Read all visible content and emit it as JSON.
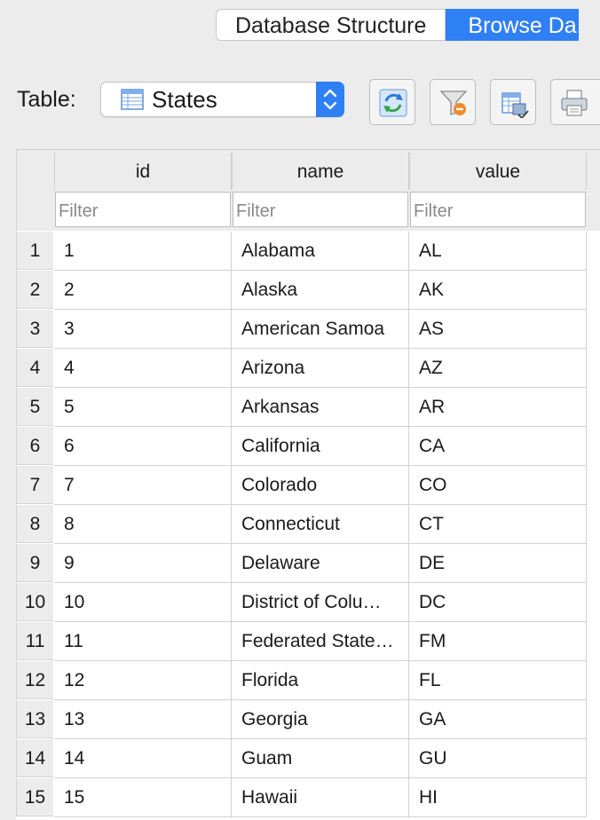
{
  "tabs": [
    {
      "label": "Database Structure",
      "active": false
    },
    {
      "label": "Browse Da",
      "active": true
    }
  ],
  "toolbar": {
    "table_label": "Table:",
    "selected_table": "States",
    "buttons": [
      "refresh-icon",
      "clear-filters-icon",
      "save-table-icon",
      "print-icon"
    ]
  },
  "columns": [
    {
      "header": "id",
      "filter_placeholder": "Filter"
    },
    {
      "header": "name",
      "filter_placeholder": "Filter"
    },
    {
      "header": "value",
      "filter_placeholder": "Filter"
    }
  ],
  "rows": [
    {
      "num": "1",
      "id": "1",
      "name": "Alabama",
      "value": "AL"
    },
    {
      "num": "2",
      "id": "2",
      "name": "Alaska",
      "value": "AK"
    },
    {
      "num": "3",
      "id": "3",
      "name": "American Samoa",
      "value": "AS"
    },
    {
      "num": "4",
      "id": "4",
      "name": "Arizona",
      "value": "AZ"
    },
    {
      "num": "5",
      "id": "5",
      "name": "Arkansas",
      "value": "AR"
    },
    {
      "num": "6",
      "id": "6",
      "name": "California",
      "value": "CA"
    },
    {
      "num": "7",
      "id": "7",
      "name": "Colorado",
      "value": "CO"
    },
    {
      "num": "8",
      "id": "8",
      "name": "Connecticut",
      "value": "CT"
    },
    {
      "num": "9",
      "id": "9",
      "name": "Delaware",
      "value": "DE"
    },
    {
      "num": "10",
      "id": "10",
      "name": "District of Colu…",
      "value": "DC"
    },
    {
      "num": "11",
      "id": "11",
      "name": "Federated State…",
      "value": "FM"
    },
    {
      "num": "12",
      "id": "12",
      "name": "Florida",
      "value": "FL"
    },
    {
      "num": "13",
      "id": "13",
      "name": "Georgia",
      "value": "GA"
    },
    {
      "num": "14",
      "id": "14",
      "name": "Guam",
      "value": "GU"
    },
    {
      "num": "15",
      "id": "15",
      "name": "Hawaii",
      "value": "HI"
    }
  ],
  "colors": {
    "accent": "#2f7ff5",
    "background": "#ececec"
  }
}
